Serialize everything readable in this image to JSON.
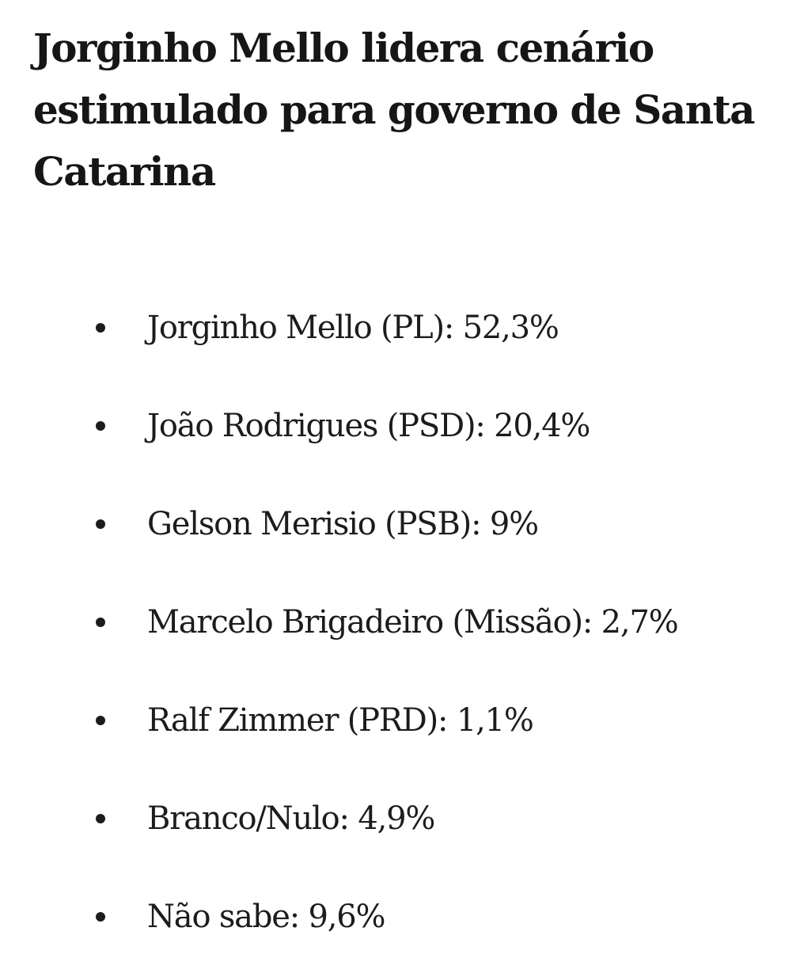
{
  "article": {
    "headline": "Jorginho Mello lidera cenário estimulado para governo de Santa Catarina",
    "results": [
      {
        "text": "Jorginho Mello (PL): 52,3%"
      },
      {
        "text": "João Rodrigues (PSD): 20,4%"
      },
      {
        "text": "Gelson Merisio (PSB): 9%"
      },
      {
        "text": "Marcelo Brigadeiro (Missão): 2,7%"
      },
      {
        "text": "Ralf Zimmer (PRD): 1,1%"
      },
      {
        "text": "Branco/Nulo: 4,9%"
      },
      {
        "text": "Não sabe: 9,6%"
      }
    ]
  }
}
